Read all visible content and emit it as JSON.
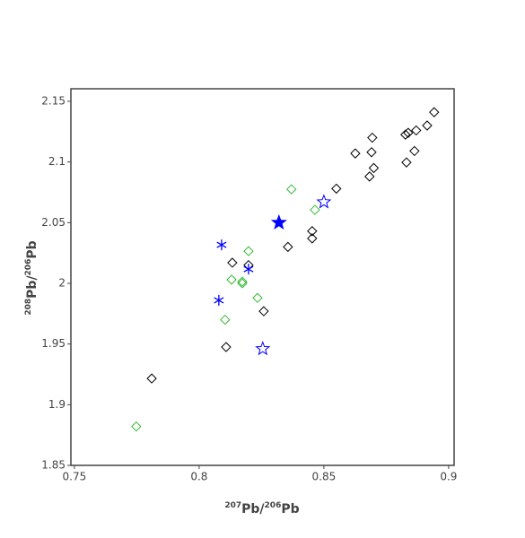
{
  "chart_data": {
    "type": "scatter",
    "xlabel": [
      "207",
      "Pb/",
      "206",
      "Pb"
    ],
    "ylabel": [
      "208",
      "Pb/",
      "206",
      "Pb"
    ],
    "xlim": [
      0.7486,
      0.9022
    ],
    "ylim": [
      1.85,
      2.1603
    ],
    "xticks": [
      0.75,
      0.8,
      0.85,
      0.9
    ],
    "yticks": [
      1.85,
      1.9,
      1.95,
      2,
      2.05,
      2.1,
      2.15
    ],
    "series": [
      {
        "color": "#000000",
        "marker": "diamond-open",
        "x": [
          0.8942,
          0.8914,
          0.887,
          0.8838,
          0.8827,
          0.8694,
          0.8863,
          0.8691,
          0.8626,
          0.8831,
          0.87,
          0.8683,
          0.855,
          0.8356,
          0.8453,
          0.8453,
          0.8133,
          0.8198,
          0.8259,
          0.8108,
          0.781
        ],
        "values": [
          2.141,
          2.13,
          2.126,
          2.124,
          2.1225,
          2.12,
          2.109,
          2.108,
          2.107,
          2.0996,
          2.095,
          2.088,
          2.078,
          2.03,
          2.043,
          2.037,
          2.017,
          2.015,
          1.977,
          1.9475,
          1.9216
        ]
      },
      {
        "color": "#33bb33",
        "marker": "diamond-open",
        "x": [
          0.837,
          0.8464,
          0.8198,
          0.813,
          0.8173,
          0.8173,
          0.8234,
          0.8104,
          0.7748
        ],
        "values": [
          2.0775,
          2.0605,
          2.0265,
          2.003,
          2.0014,
          2.0,
          1.988,
          1.97,
          1.882
        ]
      },
      {
        "color": "#0000ff",
        "marker": "asterisk",
        "x": [
          0.809,
          0.8198,
          0.8079
        ],
        "values": [
          2.0317,
          2.0117,
          1.986
        ]
      },
      {
        "color": "#0000ff",
        "marker": "star-open",
        "x": [
          0.85,
          0.8255
        ],
        "values": [
          2.067,
          1.946
        ]
      },
      {
        "color": "#0000ff",
        "marker": "star",
        "x": [
          0.832
        ],
        "values": [
          2.05
        ]
      }
    ]
  }
}
